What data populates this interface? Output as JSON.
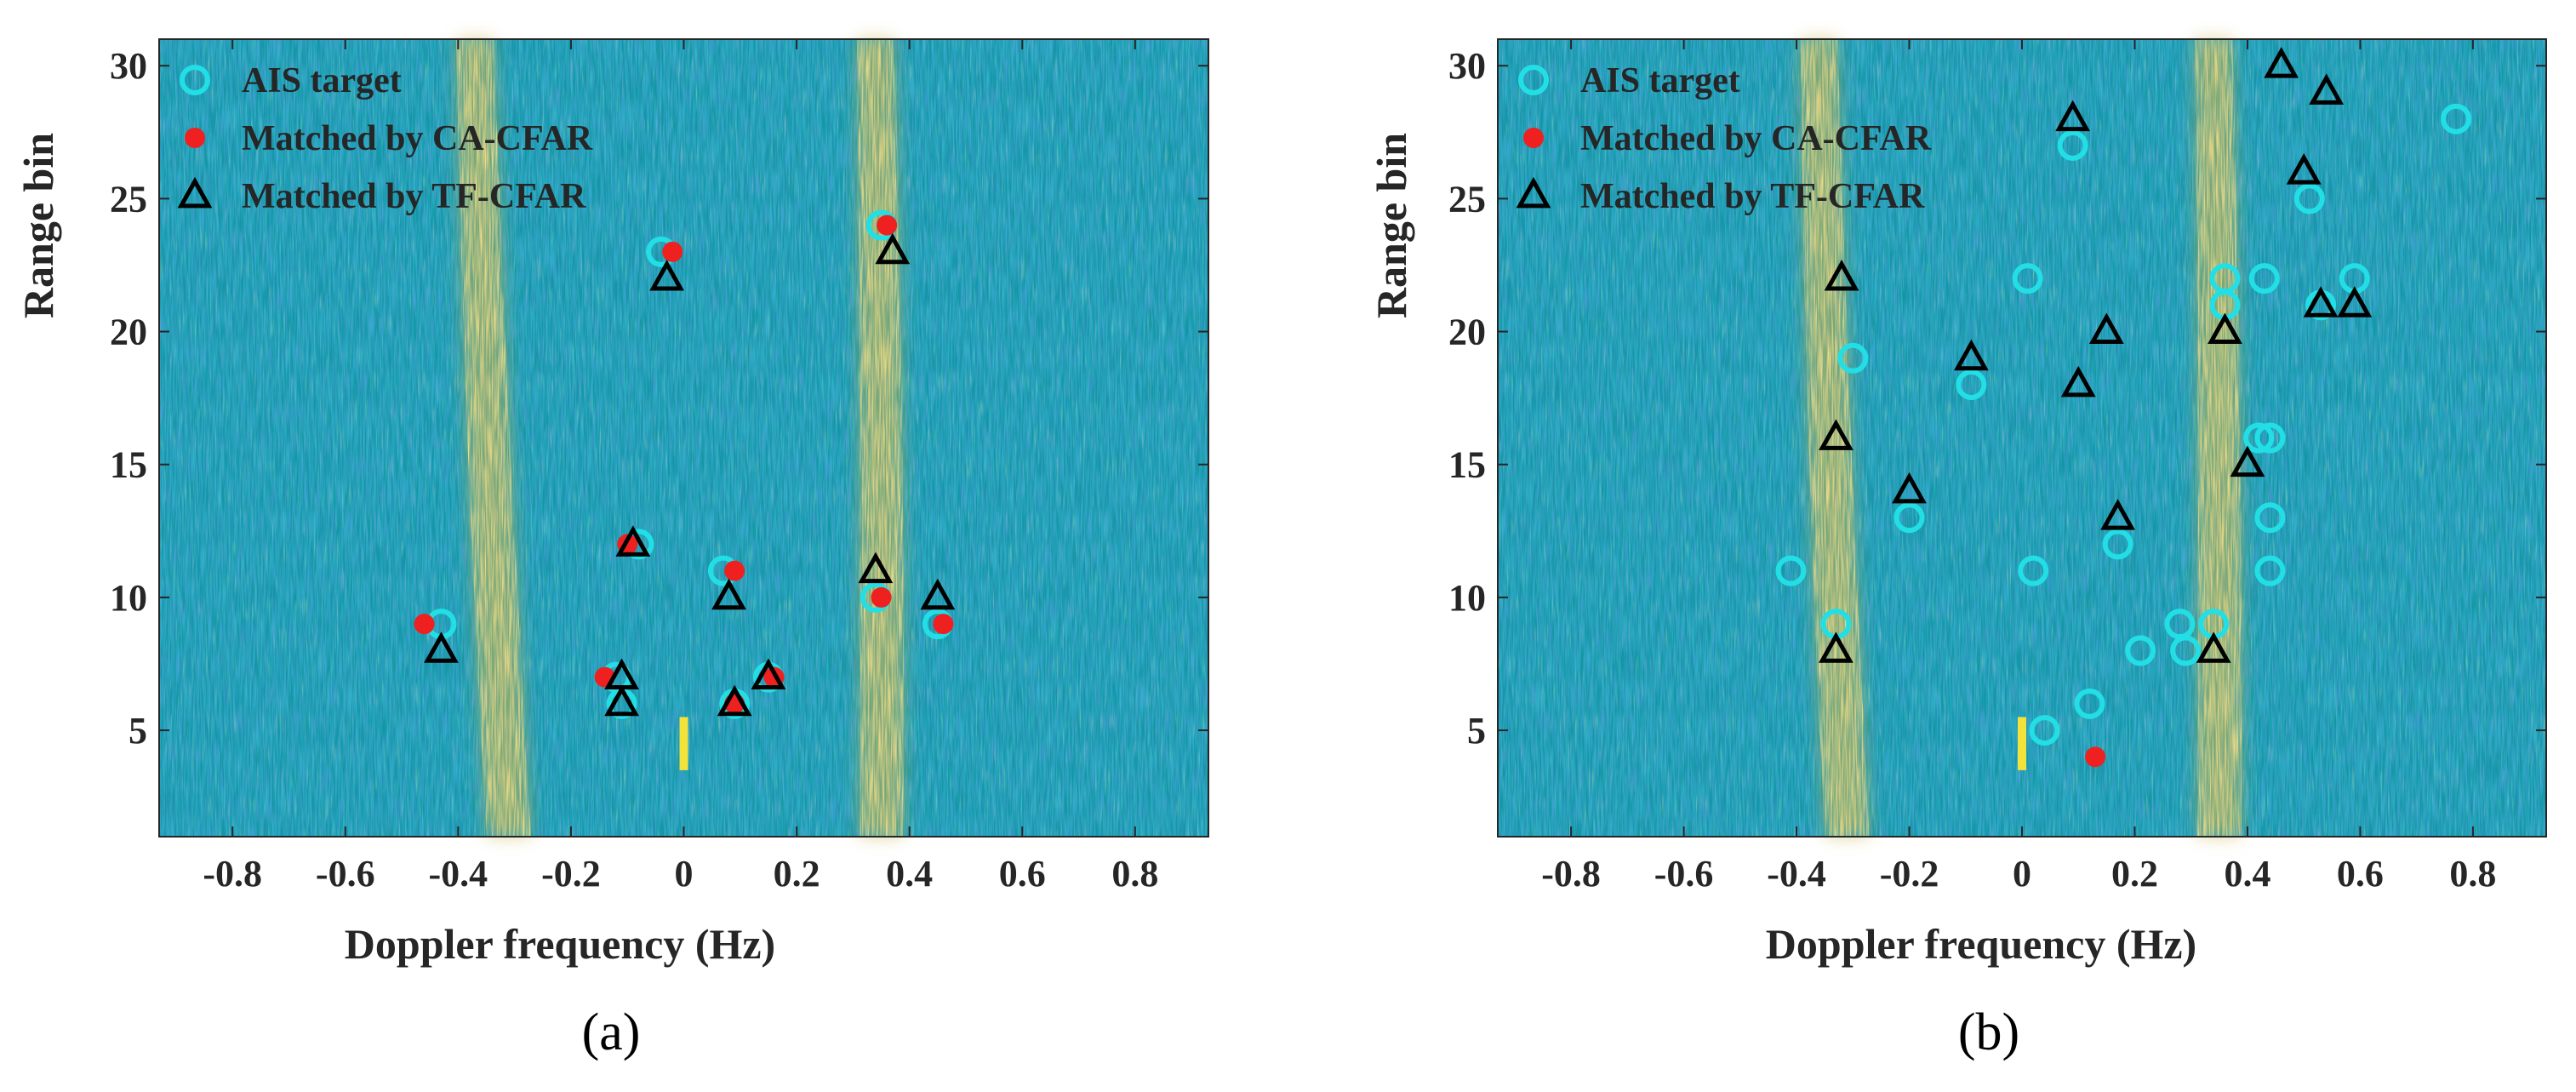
{
  "chart_data": [
    {
      "type": "scatter",
      "panel_label": "a",
      "caption": "(a)",
      "xlabel": "Doppler frequency (Hz)",
      "ylabel": "Range bin",
      "xlim": [
        -0.93,
        0.93
      ],
      "ylim": [
        1,
        31
      ],
      "xticks": [
        -0.8,
        -0.6,
        -0.4,
        -0.2,
        0,
        0.2,
        0.4,
        0.6,
        0.8
      ],
      "xtick_labels": [
        "-0.8",
        "-0.6",
        "-0.4",
        "-0.2",
        "0",
        "0.2",
        "0.4",
        "0.6",
        "0.8"
      ],
      "yticks": [
        5,
        10,
        15,
        20,
        25,
        30
      ],
      "ytick_labels": [
        "5",
        "10",
        "15",
        "20",
        "25",
        "30"
      ],
      "background": "range-Doppler spectrum heatmap, bright Bragg lines near -0.35 Hz and 0.35 Hz",
      "legend": [
        "AIS target",
        "Matched by CA-CFAR",
        "Matched by TF-CFAR"
      ],
      "series": [
        {
          "name": "AIS target",
          "marker": "circle",
          "color": "#22dfe6",
          "points": [
            [
              -0.43,
              9
            ],
            [
              -0.11,
              6
            ],
            [
              -0.12,
              7
            ],
            [
              -0.08,
              12
            ],
            [
              -0.04,
              23
            ],
            [
              0.07,
              11
            ],
            [
              0.09,
              6
            ],
            [
              0.15,
              7
            ],
            [
              0.34,
              10
            ],
            [
              0.45,
              9
            ],
            [
              0.35,
              24
            ]
          ]
        },
        {
          "name": "Matched by CA-CFAR",
          "marker": "dot",
          "color": "#ee2020",
          "points": [
            [
              -0.46,
              9
            ],
            [
              -0.14,
              7
            ],
            [
              -0.1,
              12
            ],
            [
              -0.02,
              23
            ],
            [
              0.09,
              11
            ],
            [
              0.09,
              6
            ],
            [
              0.16,
              7
            ],
            [
              0.35,
              10
            ],
            [
              0.36,
              24
            ],
            [
              0.46,
              9
            ]
          ]
        },
        {
          "name": "Matched by TF-CFAR",
          "marker": "triangle",
          "color": "#000000",
          "points": [
            [
              -0.43,
              8
            ],
            [
              -0.11,
              7
            ],
            [
              -0.11,
              6
            ],
            [
              -0.09,
              12
            ],
            [
              -0.03,
              22
            ],
            [
              0.08,
              10
            ],
            [
              0.09,
              6
            ],
            [
              0.15,
              7
            ],
            [
              0.34,
              11
            ],
            [
              0.37,
              23
            ],
            [
              0.45,
              10
            ]
          ]
        }
      ]
    },
    {
      "type": "scatter",
      "panel_label": "b",
      "caption": "(b)",
      "xlabel": "Doppler frequency (Hz)",
      "ylabel": "Range bin",
      "xlim": [
        -0.93,
        0.93
      ],
      "ylim": [
        1,
        31
      ],
      "xticks": [
        -0.8,
        -0.6,
        -0.4,
        -0.2,
        0,
        0.2,
        0.4,
        0.6,
        0.8
      ],
      "xtick_labels": [
        "-0.8",
        "-0.6",
        "-0.4",
        "-0.2",
        "0",
        "0.2",
        "0.4",
        "0.6",
        "0.8"
      ],
      "yticks": [
        5,
        10,
        15,
        20,
        25,
        30
      ],
      "ytick_labels": [
        "5",
        "10",
        "15",
        "20",
        "25",
        "30"
      ],
      "background": "range-Doppler spectrum heatmap, bright Bragg lines near -0.33 Hz and 0.35 Hz",
      "legend": [
        "AIS target",
        "Matched by CA-CFAR",
        "Matched by TF-CFAR"
      ],
      "series": [
        {
          "name": "AIS target",
          "marker": "circle",
          "color": "#22dfe6",
          "points": [
            [
              -0.41,
              11
            ],
            [
              -0.33,
              9
            ],
            [
              -0.3,
              19
            ],
            [
              -0.2,
              13
            ],
            [
              -0.09,
              18
            ],
            [
              0.01,
              22
            ],
            [
              0.02,
              11
            ],
            [
              0.04,
              5
            ],
            [
              0.09,
              27
            ],
            [
              0.12,
              6
            ],
            [
              0.17,
              12
            ],
            [
              0.21,
              8
            ],
            [
              0.28,
              9
            ],
            [
              0.29,
              8
            ],
            [
              0.34,
              9
            ],
            [
              0.36,
              22
            ],
            [
              0.36,
              21
            ],
            [
              0.42,
              16
            ],
            [
              0.43,
              22
            ],
            [
              0.44,
              16
            ],
            [
              0.44,
              13
            ],
            [
              0.44,
              11
            ],
            [
              0.51,
              25
            ],
            [
              0.53,
              21
            ],
            [
              0.59,
              22
            ],
            [
              0.77,
              28
            ]
          ]
        },
        {
          "name": "Matched by CA-CFAR",
          "marker": "dot",
          "color": "#ee2020",
          "points": [
            [
              0.13,
              4
            ]
          ]
        },
        {
          "name": "Matched by TF-CFAR",
          "marker": "triangle",
          "color": "#000000",
          "points": [
            [
              -0.32,
              22
            ],
            [
              -0.33,
              16
            ],
            [
              -0.33,
              8
            ],
            [
              -0.2,
              14
            ],
            [
              -0.09,
              19
            ],
            [
              0.09,
              28
            ],
            [
              0.1,
              18
            ],
            [
              0.15,
              20
            ],
            [
              0.17,
              13
            ],
            [
              0.34,
              8
            ],
            [
              0.36,
              20
            ],
            [
              0.4,
              15
            ],
            [
              0.46,
              30
            ],
            [
              0.5,
              26
            ],
            [
              0.54,
              29
            ],
            [
              0.53,
              21
            ],
            [
              0.59,
              21
            ]
          ]
        }
      ]
    }
  ],
  "colors": {
    "heat_low": "#1f63b0",
    "heat_mid": "#1596a8",
    "heat_high": "#e8b534",
    "axis_text": "#262626"
  }
}
